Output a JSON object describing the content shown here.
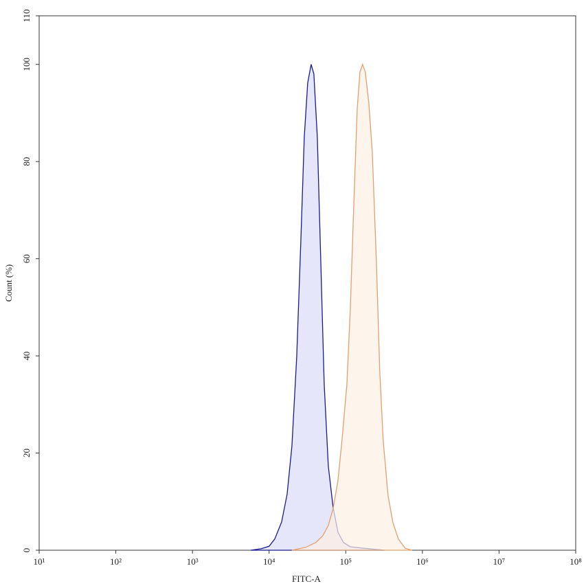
{
  "chart_data": {
    "type": "area",
    "xscale": "log",
    "xlabel": "FITC-A",
    "ylabel": "Count (%)",
    "xlim": [
      10,
      100000000
    ],
    "xticks": [
      {
        "value": 10,
        "label": "10¹"
      },
      {
        "value": 100,
        "label": "10²"
      },
      {
        "value": 1000,
        "label": "10³"
      },
      {
        "value": 10000,
        "label": "10⁴"
      },
      {
        "value": 100000,
        "label": "10⁵"
      },
      {
        "value": 1000000,
        "label": "10⁶"
      },
      {
        "value": 10000000,
        "label": "10⁷"
      },
      {
        "value": 100000000,
        "label": "10⁸"
      }
    ],
    "ylim": [
      0,
      110
    ],
    "yticks": [
      0,
      20,
      40,
      60,
      80,
      100,
      110
    ],
    "series": [
      {
        "color": "#1a1a8c",
        "fill": "#dcdcf8",
        "x": [
          5750,
          7830,
          10000,
          11840,
          14560,
          17180,
          19820,
          22900,
          25940,
          28770,
          31900,
          35320,
          38370,
          42560,
          47210,
          52360,
          59160,
          68390,
          79070,
          93300,
          114600,
          173000,
          321400
        ],
        "values": [
          0,
          0.3,
          0.8,
          2.3,
          5.8,
          11.5,
          21.4,
          39.8,
          63.6,
          85,
          96.2,
          100,
          98,
          85,
          59.7,
          34.2,
          17.3,
          8.8,
          3.7,
          1.6,
          0.7,
          0.4,
          0
        ]
      },
      {
        "color": "#e0a070",
        "fill": "#fcefe2",
        "x": [
          19800,
          30000,
          40800,
          50200,
          59200,
          68400,
          79100,
          89500,
          103300,
          114600,
          127000,
          140900,
          153000,
          166000,
          180300,
          200000,
          221800,
          251000,
          278000,
          308000,
          356000,
          412000,
          486000,
          597000,
          734000
        ],
        "values": [
          0,
          0.6,
          1.6,
          3.0,
          5.1,
          8.6,
          14.3,
          22.8,
          34.1,
          49.6,
          70.7,
          90.7,
          98.4,
          100,
          98.4,
          92,
          82,
          59.4,
          36.8,
          22.6,
          11.3,
          5.7,
          2.3,
          0.4,
          0
        ]
      }
    ]
  }
}
